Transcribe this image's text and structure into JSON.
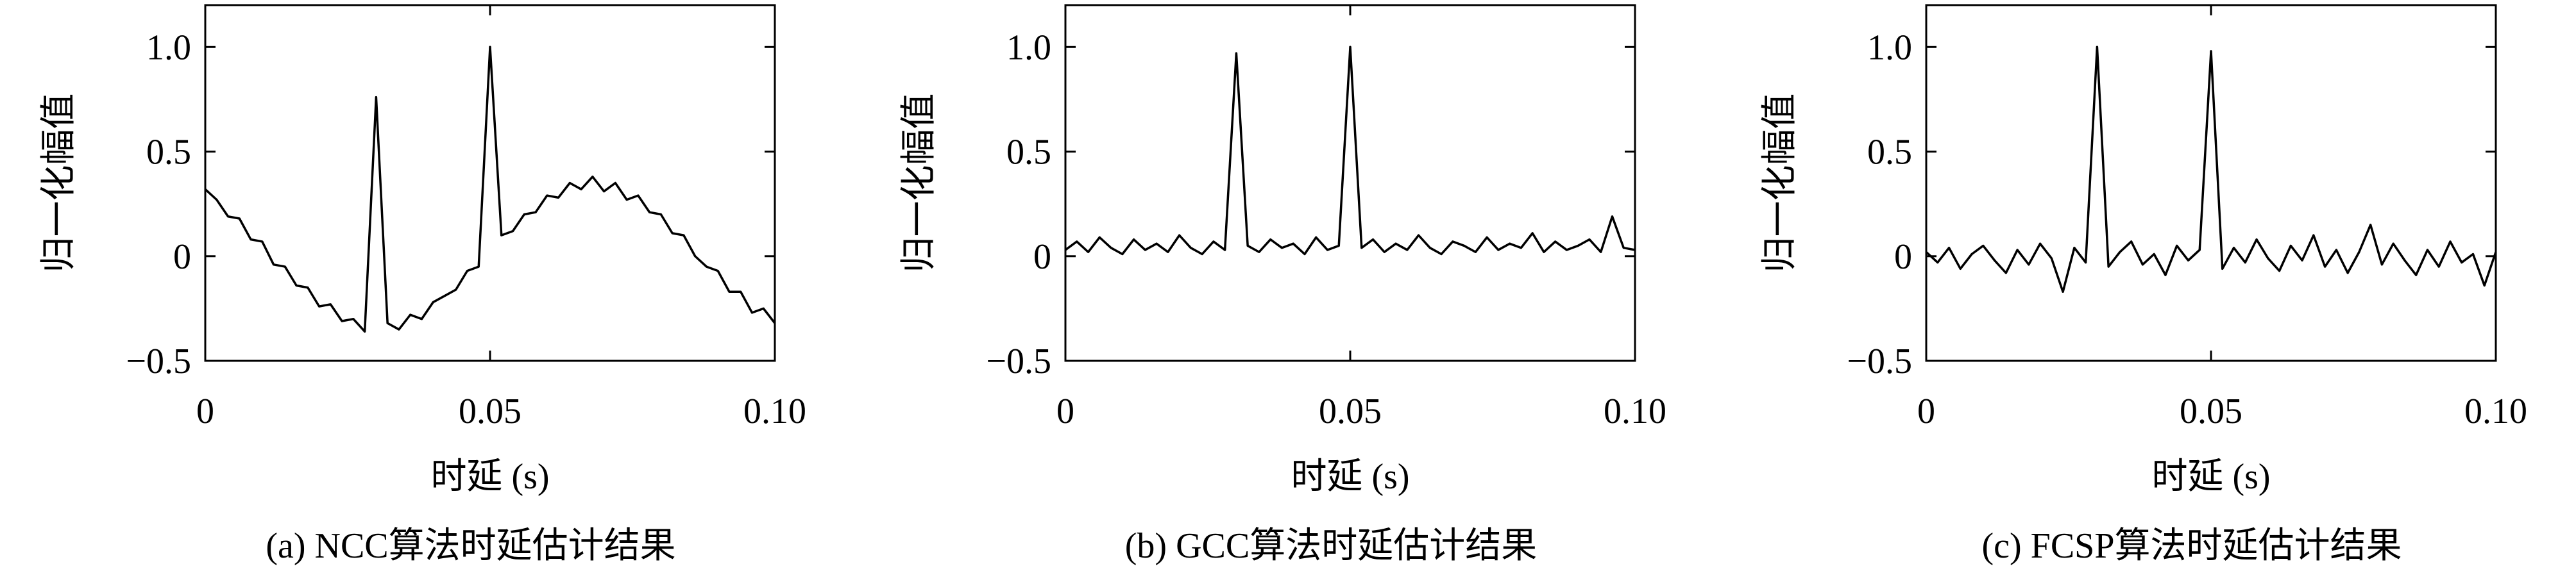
{
  "chart_data": [
    {
      "type": "line",
      "title": "(a) NCC算法时延估计结果",
      "xlabel": "时延 (s)",
      "ylabel": "归一化幅值",
      "x": [
        0,
        0.002,
        0.004,
        0.006,
        0.008,
        0.01,
        0.012,
        0.014,
        0.016,
        0.018,
        0.02,
        0.022,
        0.024,
        0.026,
        0.028,
        0.03,
        0.032,
        0.034,
        0.036,
        0.038,
        0.04,
        0.042,
        0.044,
        0.046,
        0.048,
        0.05,
        0.052,
        0.054,
        0.056,
        0.058,
        0.06,
        0.062,
        0.064,
        0.066,
        0.068,
        0.07,
        0.072,
        0.074,
        0.076,
        0.078,
        0.08,
        0.082,
        0.084,
        0.086,
        0.088,
        0.09,
        0.092,
        0.094,
        0.096,
        0.098,
        0.1
      ],
      "series": [
        {
          "color": "#000000",
          "values": [
            0.32,
            0.27,
            0.19,
            0.18,
            0.08,
            0.07,
            -0.04,
            -0.05,
            -0.14,
            -0.15,
            -0.24,
            -0.23,
            -0.31,
            -0.3,
            -0.36,
            0.76,
            -0.32,
            -0.35,
            -0.28,
            -0.3,
            -0.22,
            -0.19,
            -0.16,
            -0.07,
            -0.05,
            1.0,
            0.1,
            0.12,
            0.2,
            0.21,
            0.29,
            0.28,
            0.35,
            0.32,
            0.38,
            0.31,
            0.35,
            0.27,
            0.29,
            0.21,
            0.2,
            0.11,
            0.1,
            0,
            -0.05,
            -0.07,
            -0.17,
            -0.17,
            -0.27,
            -0.25,
            -0.32
          ]
        }
      ],
      "xlim": [
        0,
        0.1
      ],
      "xticks": [
        0,
        0.05,
        {
          "value": 0.1,
          "label": "0.10"
        }
      ],
      "ylim": [
        -0.5,
        1.2
      ],
      "yticks": [
        {
          "value": -0.5,
          "label": "−0.5"
        },
        0,
        0.5,
        {
          "value": 1,
          "label": "1.0"
        }
      ]
    },
    {
      "type": "line",
      "title": "(b) GCC算法时延估计结果",
      "xlabel": "时延 (s)",
      "ylabel": "归一化幅值",
      "x": [
        0,
        0.002,
        0.004,
        0.006,
        0.008,
        0.01,
        0.012,
        0.014,
        0.016,
        0.018,
        0.02,
        0.022,
        0.024,
        0.026,
        0.028,
        0.03,
        0.032,
        0.034,
        0.036,
        0.038,
        0.04,
        0.042,
        0.044,
        0.046,
        0.048,
        0.05,
        0.052,
        0.054,
        0.056,
        0.058,
        0.06,
        0.062,
        0.064,
        0.066,
        0.068,
        0.07,
        0.072,
        0.074,
        0.076,
        0.078,
        0.08,
        0.082,
        0.084,
        0.086,
        0.088,
        0.09,
        0.092,
        0.094,
        0.096,
        0.098,
        0.1
      ],
      "series": [
        {
          "color": "#000000",
          "values": [
            0.03,
            0.07,
            0.02,
            0.09,
            0.04,
            0.01,
            0.08,
            0.03,
            0.06,
            0.02,
            0.1,
            0.04,
            0.01,
            0.07,
            0.03,
            0.97,
            0.05,
            0.02,
            0.08,
            0.04,
            0.06,
            0.01,
            0.09,
            0.03,
            0.05,
            1.0,
            0.04,
            0.08,
            0.02,
            0.06,
            0.03,
            0.1,
            0.04,
            0.01,
            0.07,
            0.05,
            0.02,
            0.09,
            0.03,
            0.06,
            0.04,
            0.11,
            0.02,
            0.07,
            0.03,
            0.05,
            0.08,
            0.02,
            0.19,
            0.04,
            0.03
          ]
        }
      ],
      "xlim": [
        0,
        0.1
      ],
      "xticks": [
        0,
        0.05,
        {
          "value": 0.1,
          "label": "0.10"
        }
      ],
      "ylim": [
        -0.5,
        1.2
      ],
      "yticks": [
        {
          "value": -0.5,
          "label": "−0.5"
        },
        0,
        0.5,
        {
          "value": 1,
          "label": "1.0"
        }
      ]
    },
    {
      "type": "line",
      "title": "(c) FCSP算法时延估计结果",
      "xlabel": "时延 (s)",
      "ylabel": "归一化幅值",
      "x": [
        0,
        0.002,
        0.004,
        0.006,
        0.008,
        0.01,
        0.012,
        0.014,
        0.016,
        0.018,
        0.02,
        0.022,
        0.024,
        0.026,
        0.028,
        0.03,
        0.032,
        0.034,
        0.036,
        0.038,
        0.04,
        0.042,
        0.044,
        0.046,
        0.048,
        0.05,
        0.052,
        0.054,
        0.056,
        0.058,
        0.06,
        0.062,
        0.064,
        0.066,
        0.068,
        0.07,
        0.072,
        0.074,
        0.076,
        0.078,
        0.08,
        0.082,
        0.084,
        0.086,
        0.088,
        0.09,
        0.092,
        0.094,
        0.096,
        0.098,
        0.1
      ],
      "series": [
        {
          "color": "#000000",
          "values": [
            0.02,
            -0.03,
            0.04,
            -0.06,
            0.01,
            0.05,
            -0.02,
            -0.08,
            0.03,
            -0.04,
            0.06,
            -0.01,
            -0.17,
            0.04,
            -0.03,
            1.0,
            -0.05,
            0.02,
            0.07,
            -0.04,
            0.01,
            -0.09,
            0.05,
            -0.02,
            0.03,
            0.98,
            -0.06,
            0.04,
            -0.03,
            0.08,
            -0.01,
            -0.07,
            0.05,
            -0.02,
            0.1,
            -0.05,
            0.03,
            -0.08,
            0.02,
            0.15,
            -0.04,
            0.06,
            -0.02,
            -0.09,
            0.03,
            -0.05,
            0.07,
            -0.03,
            0.01,
            -0.14,
            0.02
          ]
        }
      ],
      "xlim": [
        0,
        0.1
      ],
      "xticks": [
        0,
        0.05,
        {
          "value": 0.1,
          "label": "0.10"
        }
      ],
      "ylim": [
        -0.5,
        1.2
      ],
      "yticks": [
        {
          "value": -0.5,
          "label": "−0.5"
        },
        0,
        0.5,
        {
          "value": 1,
          "label": "1.0"
        }
      ]
    }
  ]
}
